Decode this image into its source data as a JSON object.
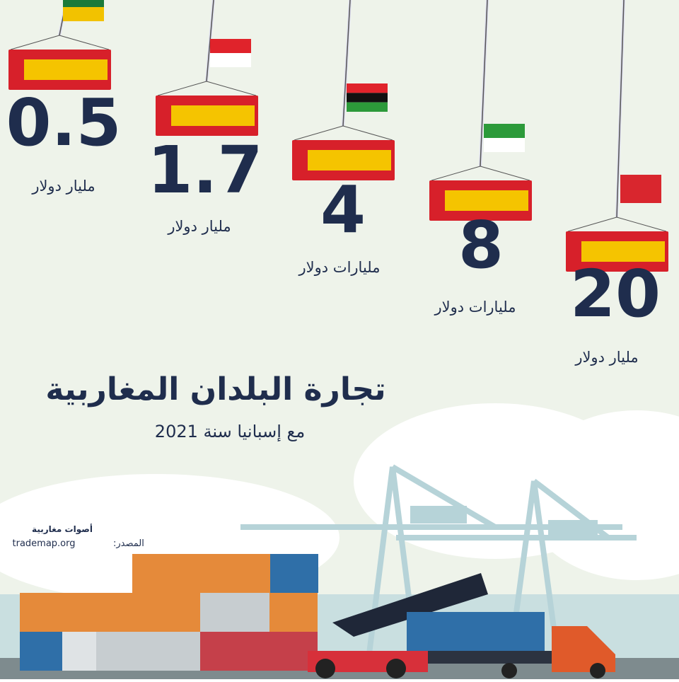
{
  "title": "تجارة البلدان المغاربية",
  "subtitle": "مع إسبانيا سنة 2021",
  "items": [
    {
      "value": 0.5,
      "unit": "مليار دولار"
    },
    {
      "value": 1.7,
      "unit": "مليار دولار"
    },
    {
      "value": 4,
      "unit": "مليارات دولار"
    },
    {
      "value": 8,
      "unit": "مليارات دولار"
    },
    {
      "value": 20,
      "unit": "مليار دولار"
    }
  ],
  "source": {
    "label": "المصدر:",
    "site": "trademap.org"
  },
  "logo": "أصوات مغاربية"
}
